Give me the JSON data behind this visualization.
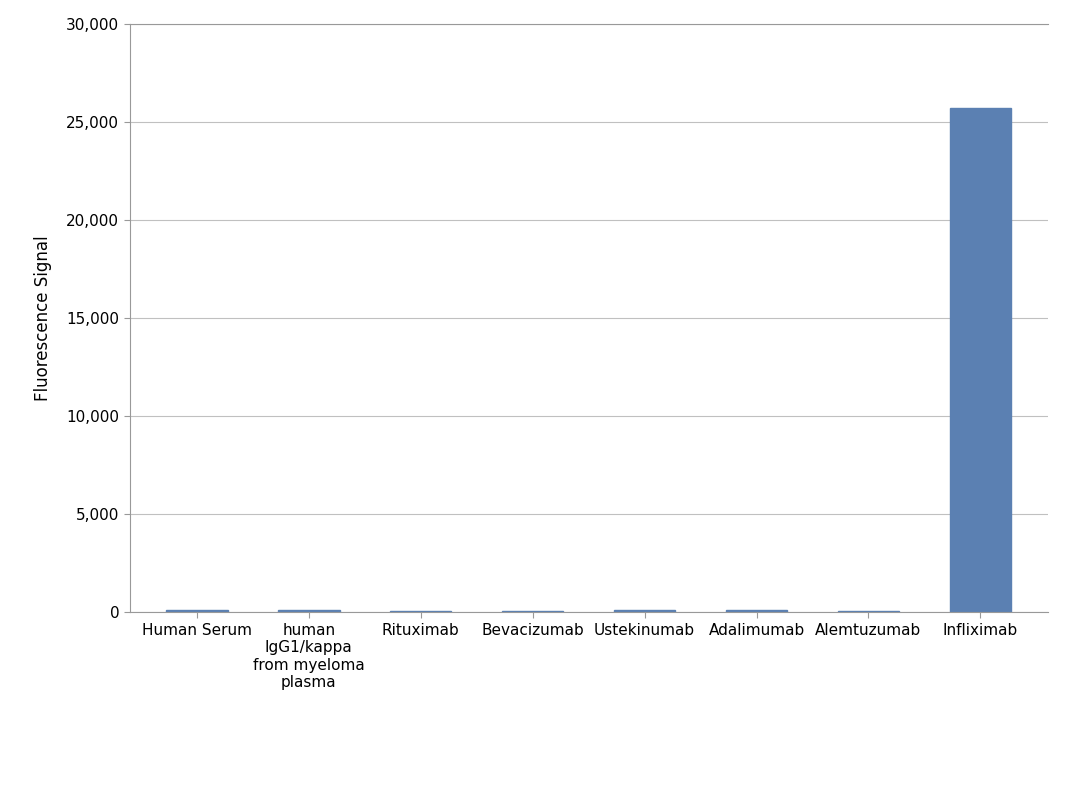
{
  "categories": [
    "Human Serum",
    "human\nIgG1/kappa\nfrom myeloma\nplasma",
    "Rituximab",
    "Bevacizumab",
    "Ustekinumab",
    "Adalimumab",
    "Alemtuzumab",
    "Infliximab"
  ],
  "values": [
    100,
    120,
    80,
    70,
    130,
    110,
    90,
    25700
  ],
  "bar_color": "#5b80b2",
  "ylabel": "Fluorescence Signal",
  "ylim": [
    0,
    30000
  ],
  "yticks": [
    0,
    5000,
    10000,
    15000,
    20000,
    25000,
    30000
  ],
  "background_color": "#ffffff",
  "plot_bg_color": "#ffffff",
  "grid_color": "#c0c0c0",
  "bar_width": 0.55,
  "spine_color": "#999999",
  "tick_label_fontsize": 11,
  "ylabel_fontsize": 12
}
